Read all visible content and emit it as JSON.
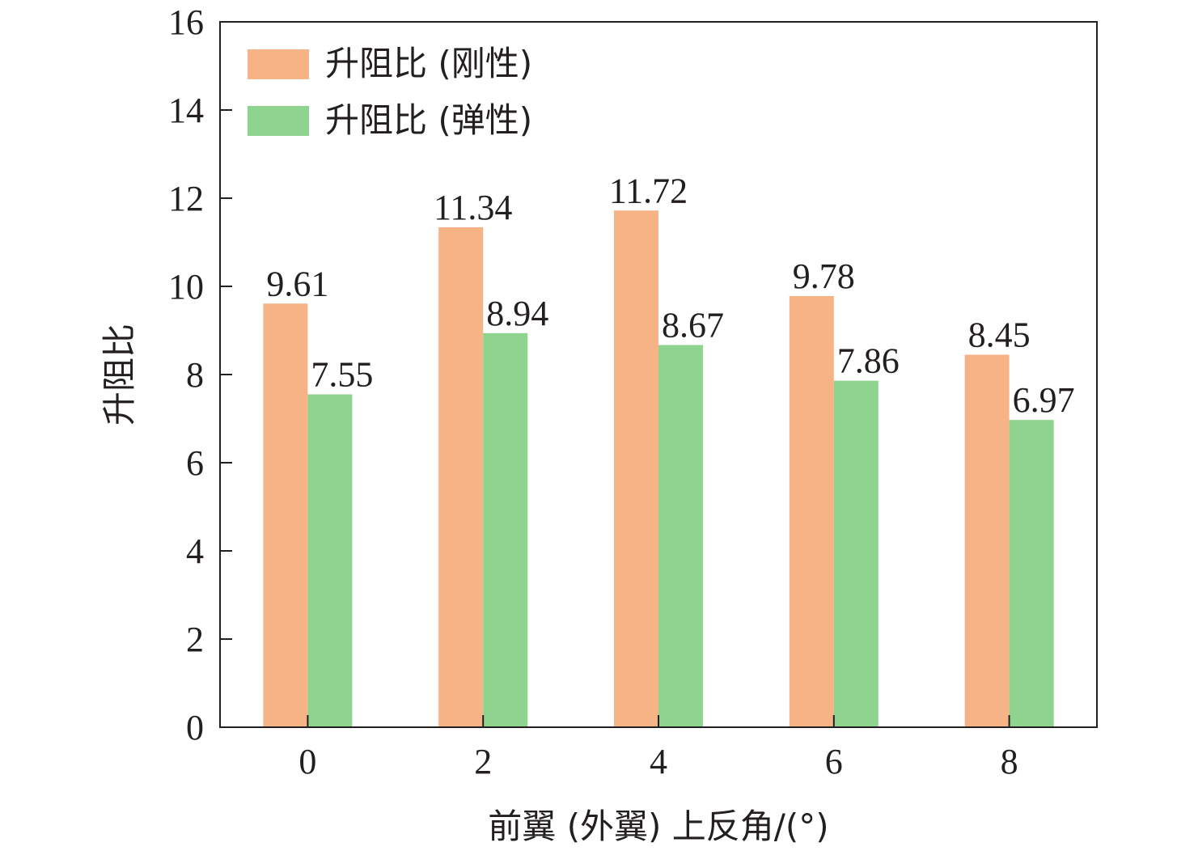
{
  "chart_data": {
    "type": "bar",
    "categories": [
      "0",
      "2",
      "4",
      "6",
      "8"
    ],
    "series": [
      {
        "name": "升阻比 (刚性)",
        "color": "#f5b386",
        "values": [
          9.61,
          11.34,
          11.72,
          9.78,
          8.45
        ],
        "labels": [
          "9.61",
          "11.34",
          "11.72",
          "9.78",
          "8.45"
        ]
      },
      {
        "name": "升阻比 (弹性)",
        "color": "#8ed48f",
        "values": [
          7.55,
          8.94,
          8.67,
          7.86,
          6.97
        ],
        "labels": [
          "7.55",
          "8.94",
          "8.67",
          "7.86",
          "6.97"
        ]
      }
    ],
    "xlabel": "前翼 (外翼) 上反角/(°)",
    "ylabel": "升阻比",
    "ylim": [
      0,
      16
    ],
    "yticks": [
      0,
      2,
      4,
      6,
      8,
      10,
      12,
      14,
      16
    ],
    "grid": false,
    "legend_position": "top-left"
  }
}
